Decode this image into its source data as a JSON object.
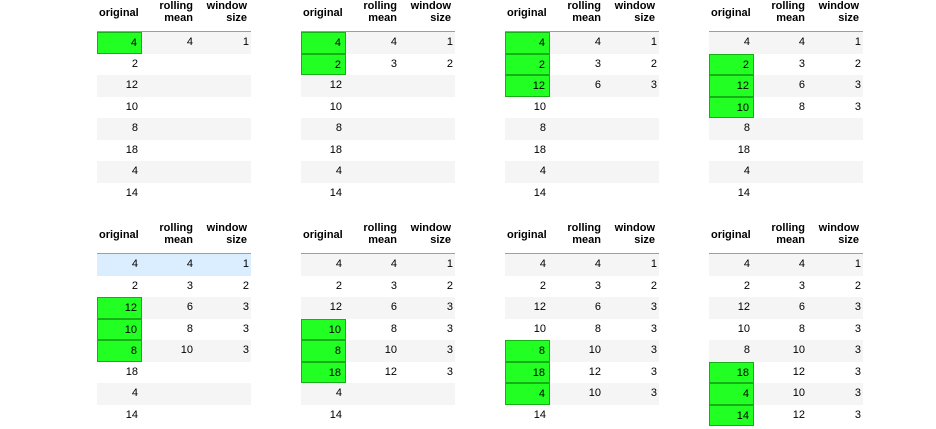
{
  "headers": {
    "original": "original",
    "rolling_mean": [
      "rolling",
      "mean"
    ],
    "window_size": [
      "window",
      "size"
    ]
  },
  "colors": {
    "window_fill": "#22ff22",
    "window_border": "#16b016",
    "stripe": "#f5f5f5",
    "highlight_row": "#dbeeff"
  },
  "original": [
    "4",
    "2",
    "12",
    "10",
    "8",
    "18",
    "4",
    "14"
  ],
  "panels": [
    {
      "rolling_mean": [
        "4",
        "",
        "",
        "",
        "",
        "",
        "",
        ""
      ],
      "window_size": [
        "1",
        "",
        "",
        "",
        "",
        "",
        "",
        ""
      ],
      "window_rows": [
        0
      ],
      "highlight_row": -1
    },
    {
      "rolling_mean": [
        "4",
        "3",
        "",
        "",
        "",
        "",
        "",
        ""
      ],
      "window_size": [
        "1",
        "2",
        "",
        "",
        "",
        "",
        "",
        ""
      ],
      "window_rows": [
        0,
        1
      ],
      "highlight_row": -1
    },
    {
      "rolling_mean": [
        "4",
        "3",
        "6",
        "",
        "",
        "",
        "",
        ""
      ],
      "window_size": [
        "1",
        "2",
        "3",
        "",
        "",
        "",
        "",
        ""
      ],
      "window_rows": [
        0,
        1,
        2
      ],
      "highlight_row": -1
    },
    {
      "rolling_mean": [
        "4",
        "3",
        "6",
        "8",
        "",
        "",
        "",
        ""
      ],
      "window_size": [
        "1",
        "2",
        "3",
        "3",
        "",
        "",
        "",
        ""
      ],
      "window_rows": [
        1,
        2,
        3
      ],
      "highlight_row": -1
    },
    {
      "rolling_mean": [
        "4",
        "3",
        "6",
        "8",
        "10",
        "",
        "",
        ""
      ],
      "window_size": [
        "1",
        "2",
        "3",
        "3",
        "3",
        "",
        "",
        ""
      ],
      "window_rows": [
        2,
        3,
        4
      ],
      "highlight_row": 0
    },
    {
      "rolling_mean": [
        "4",
        "3",
        "6",
        "8",
        "10",
        "12",
        "",
        ""
      ],
      "window_size": [
        "1",
        "2",
        "3",
        "3",
        "3",
        "3",
        "",
        ""
      ],
      "window_rows": [
        3,
        4,
        5
      ],
      "highlight_row": -1
    },
    {
      "rolling_mean": [
        "4",
        "3",
        "6",
        "8",
        "10",
        "12",
        "10",
        ""
      ],
      "window_size": [
        "1",
        "2",
        "3",
        "3",
        "3",
        "3",
        "3",
        ""
      ],
      "window_rows": [
        4,
        5,
        6
      ],
      "highlight_row": -1
    },
    {
      "rolling_mean": [
        "4",
        "3",
        "6",
        "8",
        "10",
        "12",
        "10",
        "12"
      ],
      "window_size": [
        "1",
        "2",
        "3",
        "3",
        "3",
        "3",
        "3",
        "3"
      ],
      "window_rows": [
        5,
        6,
        7
      ],
      "highlight_row": -1
    }
  ]
}
